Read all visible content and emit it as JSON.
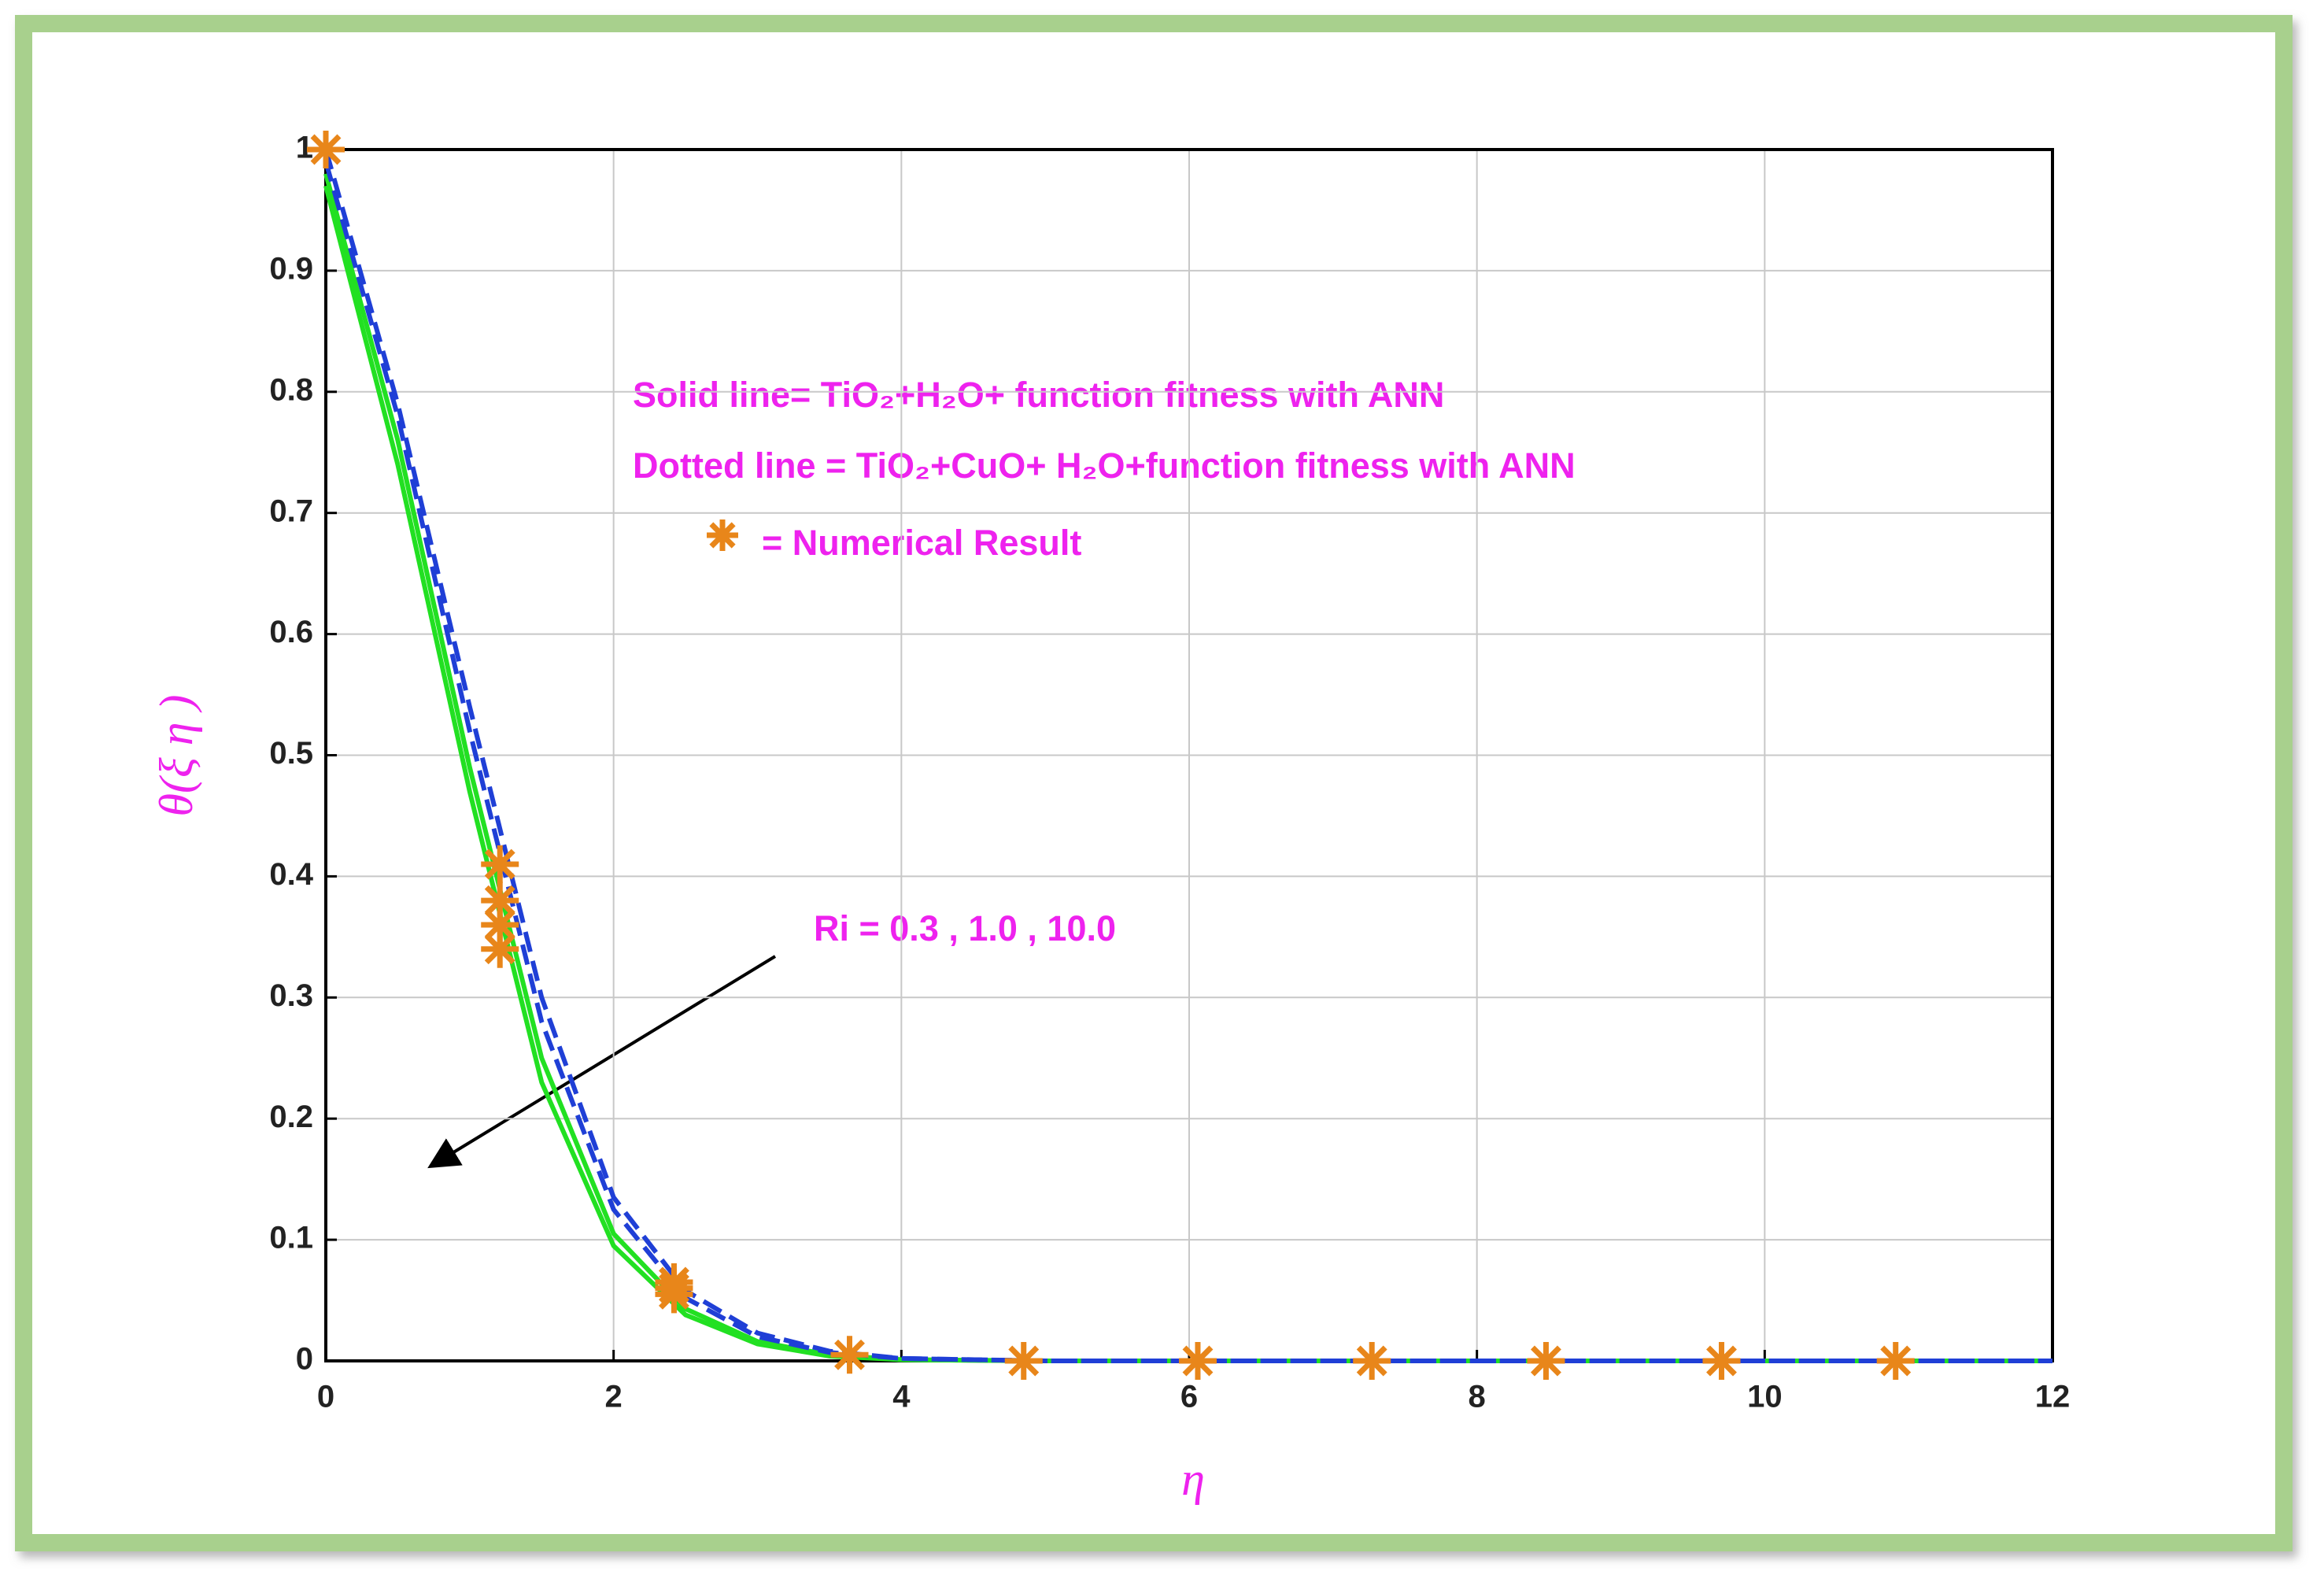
{
  "chart_data": {
    "type": "line",
    "x": [
      0,
      0.5,
      1,
      1.5,
      2,
      2.5,
      3,
      3.5,
      4,
      5,
      6,
      8,
      10,
      12
    ],
    "series": [
      {
        "color": "#22e022",
        "style": "solid",
        "values": [
          0.97,
          0.74,
          0.47,
          0.23,
          0.095,
          0.038,
          0.014,
          0.004,
          0.001,
          0,
          0,
          0,
          0,
          0
        ]
      },
      {
        "color": "#22e022",
        "style": "solid",
        "values": [
          0.98,
          0.76,
          0.49,
          0.25,
          0.105,
          0.043,
          0.016,
          0.005,
          0.001,
          0,
          0,
          0,
          0,
          0
        ]
      },
      {
        "color": "#1f3fd6",
        "style": "dashed",
        "values": [
          0.99,
          0.78,
          0.52,
          0.28,
          0.125,
          0.052,
          0.02,
          0.007,
          0.002,
          0,
          0,
          0,
          0,
          0
        ]
      },
      {
        "color": "#1f3fd6",
        "style": "dashed",
        "values": [
          1,
          0.79,
          0.54,
          0.3,
          0.135,
          0.058,
          0.023,
          0.008,
          0.002,
          0,
          0,
          0,
          0,
          0
        ]
      }
    ],
    "points": {
      "color": "#e8861a",
      "marker": "star",
      "x": [
        0,
        1.21,
        1.21,
        1.21,
        1.21,
        2.42,
        2.42,
        2.42,
        3.64,
        4.85,
        6.06,
        7.27,
        8.48,
        9.7,
        10.91
      ],
      "values": [
        1,
        0.41,
        0.38,
        0.36,
        0.34,
        0.065,
        0.06,
        0.055,
        0.005,
        0,
        0,
        0,
        0,
        0,
        0
      ]
    },
    "xlim": [
      0,
      12
    ],
    "xticks": [
      0,
      2,
      4,
      6,
      8,
      10,
      12
    ],
    "ylim": [
      0,
      1
    ],
    "yticks": [
      0,
      0.1,
      0.2,
      0.3,
      0.4,
      0.5,
      0.6,
      0.7,
      0.8,
      0.9,
      1
    ],
    "grid": true,
    "xlabel": "η",
    "ylabel": "θ(ξ η )",
    "annotations": [
      "Solid line= TiO₂+H₂O+ function fitness with ANN",
      "Dotted line = TiO₂+CuO+ H₂O+function fitness with ANN",
      "= Numerical Result",
      "Ri = 0.3 , 1.0 , 10.0"
    ]
  }
}
